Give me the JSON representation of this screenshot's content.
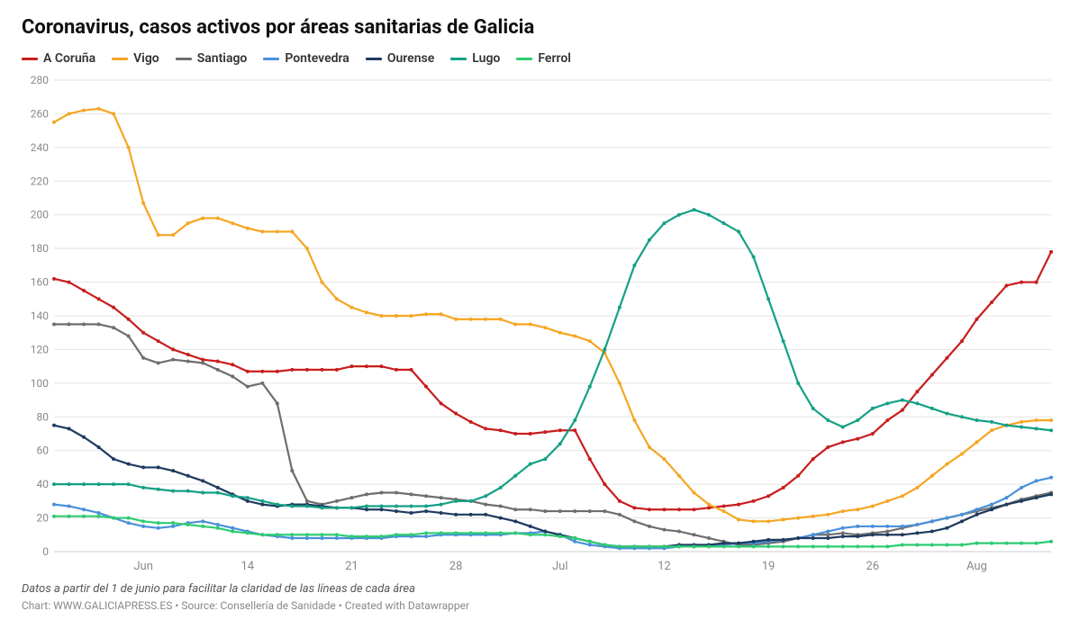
{
  "title": "Coronavirus, casos activos por áreas sanitarias de Galicia",
  "note": "Datos a partir del 1 de junio para facilitar la claridad de las líneas de cada área",
  "credits": "Chart: WWW.GALICIAPRESS.ES • Source: Consellería de Sanidade • Created with Datawrapper",
  "chart": {
    "type": "line",
    "background_color": "#ffffff",
    "grid_color": "#e3e3e3",
    "tick_font_size": 12,
    "y_axis": {
      "min": 0,
      "max": 280,
      "tick_step": 20
    },
    "x_axis": {
      "n_points": 68,
      "ticks": [
        {
          "index": 6,
          "label": "Jun"
        },
        {
          "index": 13,
          "label": "14"
        },
        {
          "index": 20,
          "label": "21"
        },
        {
          "index": 27,
          "label": "28"
        },
        {
          "index": 34,
          "label": "Jul"
        },
        {
          "index": 41,
          "label": "12"
        },
        {
          "index": 48,
          "label": "19"
        },
        {
          "index": 55,
          "label": "26"
        },
        {
          "index": 62,
          "label": "Aug"
        }
      ]
    },
    "series": [
      {
        "name": "A Coruña",
        "color": "#c71e1d",
        "values": [
          162,
          160,
          155,
          150,
          145,
          138,
          130,
          125,
          120,
          117,
          114,
          113,
          111,
          107,
          107,
          107,
          108,
          108,
          108,
          108,
          110,
          110,
          110,
          108,
          108,
          98,
          88,
          82,
          77,
          73,
          72,
          70,
          70,
          71,
          72,
          72,
          55,
          40,
          30,
          26,
          25,
          25,
          25,
          25,
          26,
          27,
          28,
          30,
          33,
          38,
          45,
          55,
          62,
          65,
          67,
          70,
          78,
          84,
          95,
          105,
          115,
          125,
          138,
          148,
          158,
          160,
          160,
          178
        ]
      },
      {
        "name": "Vigo",
        "color": "#f5a623",
        "values": [
          255,
          260,
          262,
          263,
          260,
          240,
          207,
          188,
          188,
          195,
          198,
          198,
          195,
          192,
          190,
          190,
          190,
          180,
          160,
          150,
          145,
          142,
          140,
          140,
          140,
          141,
          141,
          138,
          138,
          138,
          138,
          135,
          135,
          133,
          130,
          128,
          125,
          118,
          100,
          78,
          62,
          55,
          45,
          35,
          28,
          24,
          19,
          18,
          18,
          19,
          20,
          21,
          22,
          24,
          25,
          27,
          30,
          33,
          38,
          45,
          52,
          58,
          65,
          72,
          75,
          77,
          78,
          78
        ]
      },
      {
        "name": "Santiago",
        "color": "#6e6e6e",
        "values": [
          135,
          135,
          135,
          135,
          133,
          128,
          115,
          112,
          114,
          113,
          112,
          108,
          104,
          98,
          100,
          88,
          48,
          30,
          28,
          30,
          32,
          34,
          35,
          35,
          34,
          33,
          32,
          31,
          30,
          28,
          27,
          25,
          25,
          24,
          24,
          24,
          24,
          24,
          22,
          18,
          15,
          13,
          12,
          10,
          8,
          6,
          4,
          4,
          5,
          6,
          8,
          10,
          10,
          11,
          10,
          11,
          12,
          14,
          16,
          18,
          20,
          22,
          24,
          26,
          28,
          31,
          33,
          35
        ]
      },
      {
        "name": "Pontevedra",
        "color": "#4a90d9",
        "values": [
          28,
          27,
          25,
          23,
          20,
          17,
          15,
          14,
          15,
          17,
          18,
          16,
          14,
          12,
          10,
          9,
          8,
          8,
          8,
          8,
          8,
          8,
          8,
          9,
          9,
          9,
          10,
          10,
          10,
          10,
          10,
          11,
          11,
          12,
          10,
          6,
          4,
          3,
          2,
          2,
          2,
          2,
          3,
          3,
          4,
          4,
          5,
          5,
          6,
          7,
          8,
          10,
          12,
          14,
          15,
          15,
          15,
          15,
          16,
          18,
          20,
          22,
          25,
          28,
          32,
          38,
          42,
          44
        ]
      },
      {
        "name": "Ourense",
        "color": "#1e3a5f",
        "values": [
          75,
          73,
          68,
          62,
          55,
          52,
          50,
          50,
          48,
          45,
          42,
          38,
          34,
          30,
          28,
          27,
          28,
          28,
          27,
          26,
          26,
          25,
          25,
          24,
          23,
          24,
          23,
          22,
          22,
          22,
          20,
          18,
          15,
          12,
          10,
          8,
          6,
          4,
          3,
          3,
          3,
          3,
          4,
          4,
          4,
          5,
          5,
          6,
          7,
          7,
          8,
          8,
          8,
          9,
          9,
          10,
          10,
          10,
          11,
          12,
          14,
          18,
          22,
          25,
          28,
          30,
          32,
          34
        ]
      },
      {
        "name": "Lugo",
        "color": "#15a085",
        "values": [
          40,
          40,
          40,
          40,
          40,
          40,
          38,
          37,
          36,
          36,
          35,
          35,
          33,
          32,
          30,
          28,
          27,
          27,
          26,
          26,
          26,
          27,
          27,
          27,
          27,
          27,
          28,
          30,
          30,
          33,
          38,
          45,
          52,
          55,
          64,
          78,
          98,
          120,
          145,
          170,
          185,
          195,
          200,
          203,
          200,
          195,
          190,
          175,
          150,
          125,
          100,
          85,
          78,
          74,
          78,
          85,
          88,
          90,
          88,
          85,
          82,
          80,
          78,
          77,
          75,
          74,
          73,
          72
        ]
      },
      {
        "name": "Ferrol",
        "color": "#2ecc71",
        "values": [
          21,
          21,
          21,
          21,
          20,
          20,
          18,
          17,
          17,
          16,
          15,
          14,
          12,
          11,
          10,
          10,
          10,
          10,
          10,
          10,
          9,
          9,
          9,
          10,
          10,
          11,
          11,
          11,
          11,
          11,
          11,
          11,
          10,
          10,
          9,
          8,
          6,
          4,
          3,
          3,
          3,
          3,
          3,
          3,
          3,
          3,
          3,
          3,
          3,
          3,
          3,
          3,
          3,
          3,
          3,
          3,
          3,
          4,
          4,
          4,
          4,
          4,
          5,
          5,
          5,
          5,
          5,
          6
        ]
      }
    ]
  },
  "legend_labels": {
    "acoruna": "A Coruña",
    "vigo": "Vigo",
    "santiago": "Santiago",
    "pontevedra": "Pontevedra",
    "ourense": "Ourense",
    "lugo": "Lugo",
    "ferrol": "Ferrol"
  }
}
